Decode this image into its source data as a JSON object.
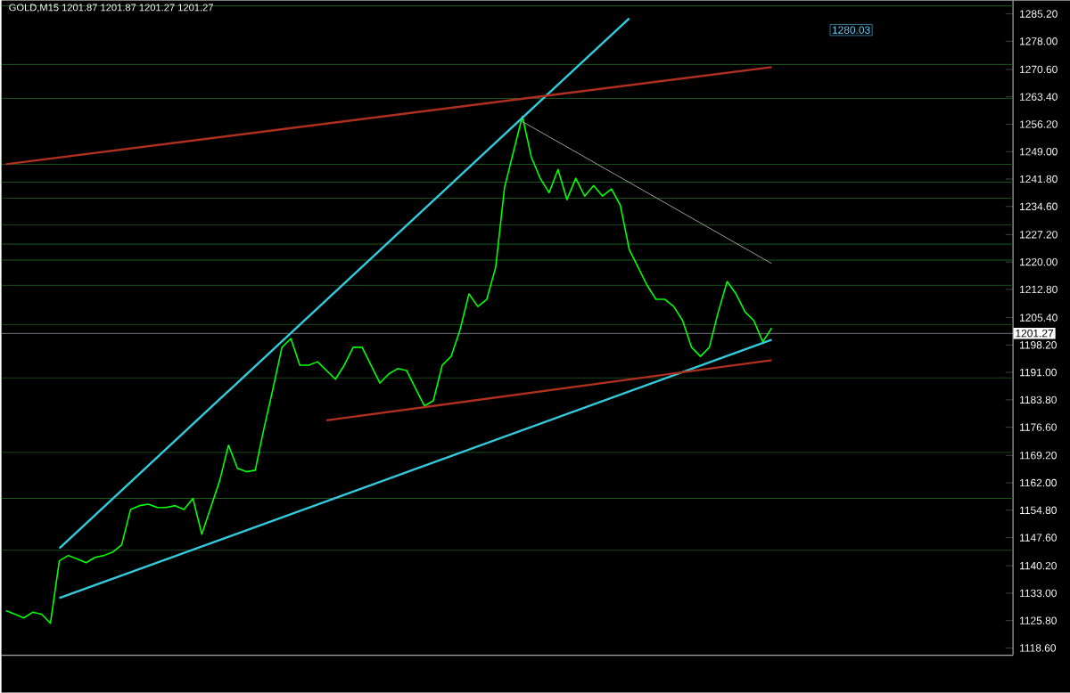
{
  "chart_data": {
    "type": "line",
    "title": "GOLD,M15  1201.87 1201.87 1201.27 1201.27",
    "annotations": [
      "1280.03"
    ],
    "categories": [
      null,
      null,
      null,
      null,
      null,
      null,
      null,
      null,
      null,
      null,
      null,
      null,
      null,
      null,
      null,
      null,
      null,
      null,
      null,
      null,
      null,
      null,
      null,
      null,
      null,
      null,
      null,
      null,
      null,
      null,
      null,
      null,
      null,
      null,
      null,
      null,
      null,
      null,
      null,
      null,
      null,
      null,
      null,
      null,
      null,
      null,
      null,
      null,
      null,
      null,
      null,
      null,
      null,
      null,
      null,
      null,
      null,
      null,
      null,
      null,
      null,
      null,
      null,
      null,
      null,
      null,
      null,
      null,
      null,
      null,
      null,
      null,
      null,
      null,
      null,
      null,
      null,
      null,
      null,
      null,
      null,
      null,
      null,
      null,
      null,
      null,
      null
    ],
    "series": [
      {
        "color": "#00ff00",
        "values": [
          1128.4,
          1127.5,
          1126.5,
          1128.0,
          1127.5,
          1125.1,
          1141.5,
          1142.9,
          1142.0,
          1141.0,
          1142.4,
          1142.9,
          1143.8,
          1145.7,
          1155.0,
          1156.0,
          1156.4,
          1155.5,
          1155.5,
          1156.0,
          1155.0,
          1157.9,
          1148.5,
          1155.5,
          1162.5,
          1171.9,
          1165.8,
          1164.9,
          1165.3,
          1176.5,
          1186.8,
          1197.6,
          1199.9,
          1192.9,
          1192.9,
          1193.8,
          1191.5,
          1189.2,
          1192.9,
          1197.6,
          1197.6,
          1192.9,
          1188.2,
          1190.6,
          1192.0,
          1191.5,
          1186.8,
          1182.2,
          1183.6,
          1192.9,
          1195.2,
          1202.2,
          1211.6,
          1208.3,
          1210.2,
          1218.6,
          1239.6,
          1249.0,
          1258.3,
          1247.6,
          1242.0,
          1238.2,
          1244.3,
          1236.4,
          1242.0,
          1237.3,
          1240.1,
          1237.3,
          1239.2,
          1234.9,
          1223.3,
          1218.6,
          1213.9,
          1210.2,
          1210.2,
          1208.3,
          1204.6,
          1197.6,
          1195.2,
          1197.6,
          1206.9,
          1214.9,
          1211.6,
          1206.9,
          1204.6,
          1199.0,
          1202.7
        ]
      },
      {
        "color": "#33ccdd",
        "values": [
          null,
          null,
          null,
          null,
          null,
          null,
          1144.8,
          null,
          null,
          null,
          null,
          null,
          null,
          null,
          null,
          null,
          null,
          null,
          null,
          null,
          null,
          null,
          null,
          null,
          null,
          null,
          null,
          null,
          null,
          null,
          null,
          null,
          null,
          null,
          null,
          null,
          null,
          null,
          null,
          null,
          null,
          null,
          null,
          null,
          null,
          null,
          null,
          null,
          null,
          null,
          null,
          null,
          null,
          null,
          null,
          null,
          null,
          null,
          null,
          null,
          null,
          null,
          null,
          null,
          null,
          null,
          null,
          null,
          null,
          null,
          1284.0,
          null,
          null,
          null,
          null,
          null,
          null,
          null,
          null,
          null,
          null,
          null,
          null,
          null,
          null,
          null,
          null
        ]
      },
      {
        "color": "#33ccdd",
        "values": [
          null,
          null,
          null,
          null,
          null,
          null,
          1131.7,
          null,
          null,
          null,
          null,
          null,
          null,
          null,
          null,
          null,
          null,
          null,
          null,
          null,
          null,
          null,
          null,
          null,
          null,
          null,
          null,
          null,
          null,
          null,
          null,
          null,
          null,
          null,
          null,
          null,
          null,
          null,
          null,
          null,
          null,
          null,
          null,
          null,
          null,
          null,
          null,
          null,
          null,
          null,
          null,
          null,
          null,
          null,
          null,
          null,
          null,
          null,
          null,
          null,
          null,
          null,
          null,
          null,
          null,
          null,
          null,
          null,
          null,
          null,
          null,
          null,
          null,
          null,
          null,
          null,
          null,
          null,
          null,
          null,
          null,
          null,
          null,
          null,
          null,
          null,
          1199.6
        ]
      },
      {
        "color": "#b03020",
        "values": [
          1245.7,
          null,
          null,
          null,
          null,
          null,
          null,
          null,
          null,
          null,
          null,
          null,
          null,
          null,
          null,
          null,
          null,
          null,
          null,
          null,
          null,
          null,
          null,
          null,
          null,
          null,
          null,
          null,
          null,
          null,
          null,
          null,
          null,
          null,
          null,
          null,
          null,
          null,
          null,
          null,
          null,
          null,
          null,
          null,
          null,
          null,
          null,
          null,
          null,
          null,
          null,
          null,
          null,
          null,
          null,
          null,
          null,
          null,
          null,
          null,
          null,
          null,
          null,
          null,
          null,
          null,
          null,
          null,
          null,
          null,
          null,
          null,
          null,
          null,
          null,
          null,
          null,
          null,
          null,
          null,
          null,
          null,
          null,
          null,
          null,
          null,
          1271.2
        ]
      },
      {
        "color": "#b03020",
        "values": [
          null,
          null,
          null,
          null,
          null,
          null,
          null,
          null,
          null,
          null,
          null,
          null,
          null,
          null,
          null,
          null,
          null,
          null,
          null,
          null,
          null,
          null,
          null,
          null,
          null,
          null,
          null,
          null,
          null,
          null,
          null,
          null,
          null,
          null,
          null,
          null,
          1178.4,
          null,
          null,
          null,
          null,
          null,
          null,
          null,
          null,
          null,
          null,
          null,
          null,
          null,
          null,
          null,
          null,
          null,
          null,
          null,
          null,
          null,
          null,
          null,
          null,
          null,
          null,
          null,
          null,
          null,
          null,
          null,
          null,
          null,
          null,
          null,
          null,
          null,
          null,
          null,
          null,
          null,
          null,
          null,
          null,
          null,
          null,
          null,
          null,
          null,
          1194.2
        ]
      },
      {
        "color": "#c0c0c0",
        "values": [
          null,
          null,
          null,
          null,
          null,
          null,
          null,
          null,
          null,
          null,
          null,
          null,
          null,
          null,
          null,
          null,
          null,
          null,
          null,
          null,
          null,
          null,
          null,
          null,
          null,
          null,
          null,
          null,
          null,
          null,
          null,
          null,
          null,
          null,
          null,
          null,
          null,
          null,
          null,
          null,
          null,
          null,
          null,
          null,
          null,
          null,
          null,
          null,
          null,
          null,
          null,
          null,
          null,
          null,
          null,
          null,
          null,
          null,
          1256.9,
          null,
          null,
          null,
          null,
          null,
          null,
          null,
          null,
          null,
          null,
          null,
          null,
          null,
          null,
          null,
          null,
          null,
          null,
          null,
          null,
          null,
          null,
          null,
          null,
          null,
          null,
          null,
          1219.6
        ]
      }
    ],
    "ylim": [
      1116.7,
      1288.7
    ],
    "yticks": [
      {
        "value": 1118.6,
        "label": "1118.60"
      },
      {
        "value": 1125.8,
        "label": "1125.80"
      },
      {
        "value": 1133.0,
        "label": "1133.00"
      },
      {
        "value": 1140.2,
        "label": "1140.20"
      },
      {
        "value": 1147.6,
        "label": "1147.60"
      },
      {
        "value": 1154.8,
        "label": "1154.80"
      },
      {
        "value": 1162.0,
        "label": "1162.00"
      },
      {
        "value": 1169.2,
        "label": "1169.20"
      },
      {
        "value": 1176.6,
        "label": "1176.60"
      },
      {
        "value": 1183.8,
        "label": "1183.80"
      },
      {
        "value": 1191.0,
        "label": "1191.00"
      },
      {
        "value": 1198.2,
        "label": "1198.20"
      },
      {
        "value": 1205.4,
        "label": "1205.40"
      },
      {
        "value": 1212.8,
        "label": "1212.80"
      },
      {
        "value": 1220.0,
        "label": "1220.00"
      },
      {
        "value": 1227.2,
        "label": "1227.20"
      },
      {
        "value": 1234.6,
        "label": "1234.60"
      },
      {
        "value": 1241.8,
        "label": "1241.80"
      },
      {
        "value": 1249.0,
        "label": "1249.00"
      },
      {
        "value": 1256.2,
        "label": "1256.20"
      },
      {
        "value": 1263.4,
        "label": "1263.40"
      },
      {
        "value": 1270.6,
        "label": "1270.60"
      },
      {
        "value": 1278.0,
        "label": "1278.00"
      },
      {
        "value": 1285.2,
        "label": "1285.20"
      }
    ],
    "tick_labels": "y",
    "marker": "none",
    "line_style": "solid",
    "grid": false,
    "ref_lines": [
      {
        "axis": "y",
        "value": 1201.27,
        "label": "1201.27",
        "color": "#8a8a9a"
      },
      {
        "axis": "y",
        "value": 1287.3,
        "color": "#1e5a1e"
      },
      {
        "axis": "y",
        "value": 1271.9,
        "color": "#1e5a1e"
      },
      {
        "axis": "y",
        "value": 1263.0,
        "color": "#1e5a1e"
      },
      {
        "axis": "y",
        "value": 1245.7,
        "color": "#1e5a1e"
      },
      {
        "axis": "y",
        "value": 1241.0,
        "color": "#1e5a1e"
      },
      {
        "axis": "y",
        "value": 1236.8,
        "color": "#1e5a1e"
      },
      {
        "axis": "y",
        "value": 1229.8,
        "color": "#1e5a1e"
      },
      {
        "axis": "y",
        "value": 1224.7,
        "color": "#1e5a1e"
      },
      {
        "axis": "y",
        "value": 1220.5,
        "color": "#1e5a1e"
      },
      {
        "axis": "y",
        "value": 1213.9,
        "color": "#1e5a1e"
      },
      {
        "axis": "y",
        "value": 1203.6,
        "color": "#1e5a1e"
      },
      {
        "axis": "y",
        "value": 1189.6,
        "color": "#1e5a1e"
      },
      {
        "axis": "y",
        "value": 1170.0,
        "color": "#1e5a1e"
      },
      {
        "axis": "y",
        "value": 1157.9,
        "color": "#1e5a1e"
      },
      {
        "axis": "y",
        "value": 1144.3,
        "color": "#1e5a1e"
      }
    ]
  }
}
